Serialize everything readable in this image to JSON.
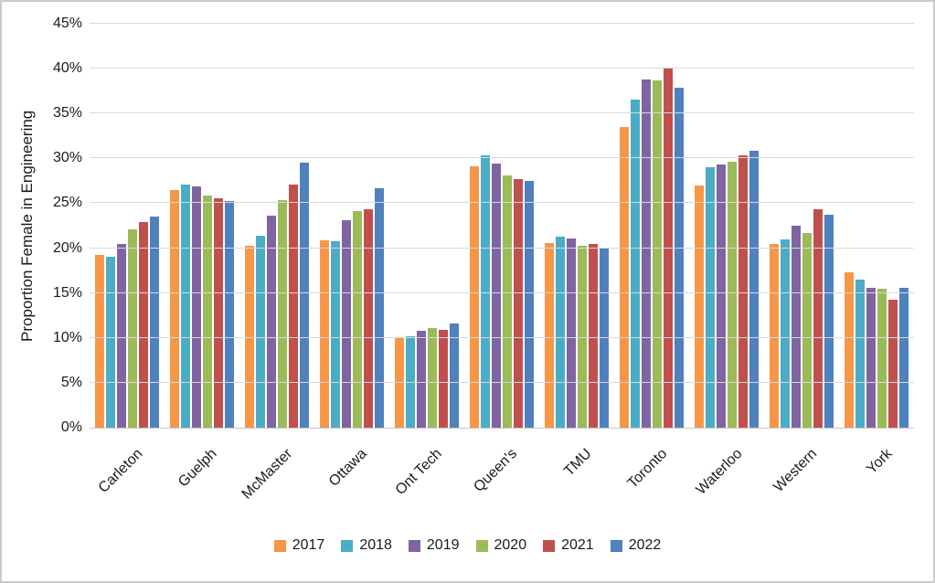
{
  "figure": {
    "background": "#FFFFFF",
    "border_color": "#CBCBCB",
    "text_color": "#1A1A1A",
    "gridline_color": "#D9D9D9"
  },
  "chart_data": {
    "type": "bar",
    "title": "",
    "xlabel": "",
    "ylabel": "Proportion Female in Engineering",
    "ylim": [
      0,
      45
    ],
    "grid": true,
    "legend_position": "bottom",
    "yticks": {
      "values": [
        0,
        5,
        10,
        15,
        20,
        25,
        30,
        35,
        40,
        45
      ],
      "labels": [
        "0%",
        "5%",
        "10%",
        "15%",
        "20%",
        "25%",
        "30%",
        "35%",
        "40%",
        "45%"
      ]
    },
    "categories": [
      "Carleton",
      "Guelph",
      "McMaster",
      "Ottawa",
      "Ont Tech",
      "Queen's",
      "TMU",
      "Toronto",
      "Waterloo",
      "Western",
      "York"
    ],
    "series": [
      {
        "name": "2017",
        "color": "#F79646",
        "values": [
          19.2,
          26.5,
          20.3,
          20.9,
          10.1,
          29.1,
          20.6,
          33.5,
          27.0,
          20.5,
          17.3
        ]
      },
      {
        "name": "2018",
        "color": "#4BACC6",
        "values": [
          19.0,
          27.1,
          21.4,
          20.8,
          10.2,
          30.3,
          21.3,
          36.6,
          29.0,
          21.0,
          16.5
        ]
      },
      {
        "name": "2019",
        "color": "#8064A2",
        "values": [
          20.5,
          26.9,
          23.6,
          23.1,
          10.8,
          29.4,
          21.1,
          38.8,
          29.3,
          22.5,
          15.6
        ]
      },
      {
        "name": "2020",
        "color": "#9BBB59",
        "values": [
          22.1,
          25.9,
          25.4,
          24.1,
          11.1,
          28.1,
          20.3,
          38.7,
          29.6,
          21.7,
          15.5
        ]
      },
      {
        "name": "2021",
        "color": "#C0504D",
        "values": [
          22.9,
          25.6,
          27.1,
          24.3,
          10.9,
          27.7,
          20.5,
          40.1,
          30.3,
          24.3,
          14.3
        ]
      },
      {
        "name": "2022",
        "color": "#4F81BD",
        "values": [
          23.5,
          25.3,
          29.5,
          26.7,
          11.6,
          27.5,
          20.1,
          37.9,
          30.9,
          23.7,
          15.6
        ]
      }
    ]
  }
}
